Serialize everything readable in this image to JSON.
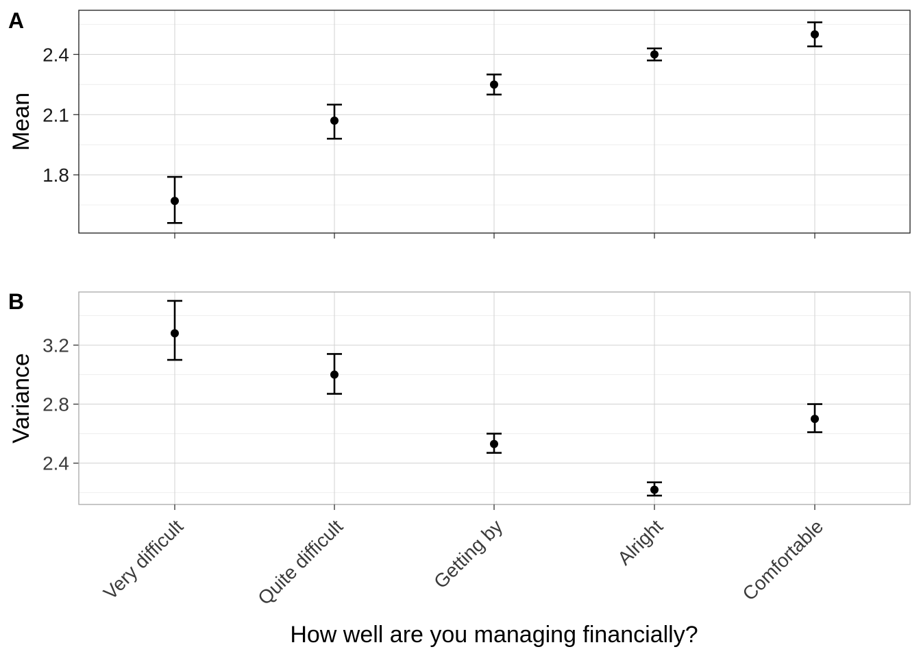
{
  "chart_data": [
    {
      "type": "scatter",
      "panel_tag": "A",
      "title": "",
      "ylabel": "Mean",
      "xlabel": "",
      "categories": [
        "Very difficult",
        "Quite difficult",
        "Getting by",
        "Alright",
        "Comfortable"
      ],
      "series": [
        {
          "values": [
            1.67,
            2.07,
            2.25,
            2.4,
            2.5
          ],
          "ci_low": [
            1.56,
            1.98,
            2.2,
            2.37,
            2.44
          ],
          "ci_high": [
            1.79,
            2.15,
            2.3,
            2.43,
            2.56
          ]
        }
      ],
      "ylim": [
        1.51,
        2.62
      ],
      "yticks": [
        1.8,
        2.1,
        2.4
      ],
      "ytick_labels": [
        "1.8",
        "2.1",
        "2.4"
      ],
      "grid": true,
      "frame": "dark"
    },
    {
      "type": "scatter",
      "panel_tag": "B",
      "title": "",
      "ylabel": "Variance",
      "xlabel": "How well are you managing financially?",
      "categories": [
        "Very difficult",
        "Quite difficult",
        "Getting by",
        "Alright",
        "Comfortable"
      ],
      "series": [
        {
          "values": [
            3.28,
            3.0,
            2.53,
            2.22,
            2.7
          ],
          "ci_low": [
            3.1,
            2.87,
            2.47,
            2.18,
            2.61
          ],
          "ci_high": [
            3.5,
            3.14,
            2.6,
            2.27,
            2.8
          ]
        }
      ],
      "ylim": [
        2.12,
        3.56
      ],
      "yticks": [
        2.4,
        2.8,
        3.2
      ],
      "ytick_labels": [
        "2.4",
        "2.8",
        "3.2"
      ],
      "grid": true,
      "frame": "light"
    }
  ]
}
